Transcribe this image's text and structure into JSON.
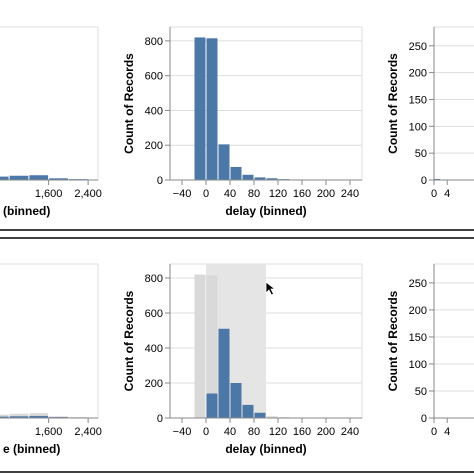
{
  "colors": {
    "bar": "#4c78a8",
    "bar_faded": "#d9d9d9",
    "selection": "#e5e5e5",
    "grid": "#dddddd",
    "axis": "#888888",
    "divider": "#000000"
  },
  "cursor": {
    "icon": "arrow-cursor-icon"
  },
  "chart_data": [
    {
      "type": "bar",
      "panel": "top-left",
      "xlabel": "(binned)",
      "x_tick_labels": [
        "1,600",
        "2,400"
      ],
      "x_ticks": [
        1600,
        2400
      ],
      "xlim": [
        -600,
        2600
      ],
      "ylim": [
        0,
        900
      ],
      "bins": [
        {
          "x0": 400,
          "x1": 800,
          "value": 20
        },
        {
          "x0": 800,
          "x1": 1200,
          "value": 25
        },
        {
          "x0": 1200,
          "x1": 1600,
          "value": 28
        },
        {
          "x0": 1600,
          "x1": 2000,
          "value": 10
        },
        {
          "x0": 2000,
          "x1": 2400,
          "value": 5
        }
      ]
    },
    {
      "type": "bar",
      "panel": "top-middle",
      "xlabel": "delay (binned)",
      "ylabel": "Count of Records",
      "x_tick_labels": [
        "−40",
        "0",
        "40",
        "80",
        "120",
        "160",
        "200",
        "240"
      ],
      "x_ticks": [
        -40,
        0,
        40,
        80,
        120,
        160,
        200,
        240
      ],
      "y_tick_labels": [
        "0",
        "200",
        "400",
        "600",
        "800"
      ],
      "y_ticks": [
        0,
        200,
        400,
        600,
        800
      ],
      "xlim": [
        -60,
        260
      ],
      "ylim": [
        0,
        880
      ],
      "bins": [
        {
          "x0": -20,
          "x1": 0,
          "value": 820
        },
        {
          "x0": 0,
          "x1": 20,
          "value": 815
        },
        {
          "x0": 20,
          "x1": 40,
          "value": 205
        },
        {
          "x0": 40,
          "x1": 60,
          "value": 75
        },
        {
          "x0": 60,
          "x1": 80,
          "value": 30
        },
        {
          "x0": 80,
          "x1": 100,
          "value": 15
        },
        {
          "x0": 100,
          "x1": 120,
          "value": 10
        },
        {
          "x0": 120,
          "x1": 140,
          "value": 5
        },
        {
          "x0": 140,
          "x1": 160,
          "value": 3
        },
        {
          "x0": 160,
          "x1": 180,
          "value": 2
        },
        {
          "x0": 180,
          "x1": 200,
          "value": 2
        },
        {
          "x0": 200,
          "x1": 220,
          "value": 1
        },
        {
          "x0": 220,
          "x1": 240,
          "value": 1
        }
      ]
    },
    {
      "type": "bar",
      "panel": "top-right",
      "ylabel": "Count of Records",
      "x_tick_labels": [
        "0",
        "4"
      ],
      "x_ticks": [
        0,
        4
      ],
      "y_tick_labels": [
        "0",
        "50",
        "100",
        "150",
        "200",
        "250"
      ],
      "y_ticks": [
        0,
        50,
        100,
        150,
        200,
        250
      ],
      "xlim": [
        0,
        20
      ],
      "ylim": [
        0,
        285
      ],
      "bins": [
        {
          "x0": 0,
          "x1": 2,
          "value": 2
        },
        {
          "x0": 2,
          "x1": 4,
          "value": 1
        }
      ]
    },
    {
      "type": "bar",
      "panel": "bottom-left",
      "xlabel": "e (binned)",
      "x_tick_labels": [
        "1,600",
        "2,400"
      ],
      "x_ticks": [
        1600,
        2400
      ],
      "xlim": [
        -600,
        2600
      ],
      "ylim": [
        0,
        900
      ],
      "bins": [
        {
          "x0": 400,
          "x1": 800,
          "value": 20,
          "filtered": 8
        },
        {
          "x0": 800,
          "x1": 1200,
          "value": 25,
          "filtered": 10
        },
        {
          "x0": 1200,
          "x1": 1600,
          "value": 28,
          "filtered": 12
        },
        {
          "x0": 1600,
          "x1": 2000,
          "value": 10,
          "filtered": 5
        },
        {
          "x0": 2000,
          "x1": 2400,
          "value": 5,
          "filtered": 2
        }
      ]
    },
    {
      "type": "bar",
      "panel": "bottom-middle",
      "xlabel": "delay (binned)",
      "ylabel": "Count of Records",
      "x_tick_labels": [
        "−40",
        "0",
        "40",
        "80",
        "120",
        "160",
        "200",
        "240"
      ],
      "x_ticks": [
        -40,
        0,
        40,
        80,
        120,
        160,
        200,
        240
      ],
      "y_tick_labels": [
        "0",
        "200",
        "400",
        "600",
        "800"
      ],
      "y_ticks": [
        0,
        200,
        400,
        600,
        800
      ],
      "xlim": [
        -60,
        260
      ],
      "ylim": [
        0,
        880
      ],
      "selection": [
        0,
        100
      ],
      "bins": [
        {
          "x0": -20,
          "x1": 0,
          "value": 820,
          "filtered": 0
        },
        {
          "x0": 0,
          "x1": 20,
          "value": 815,
          "filtered": 140
        },
        {
          "x0": 20,
          "x1": 40,
          "value": 205,
          "filtered": 510
        },
        {
          "x0": 40,
          "x1": 60,
          "value": 75,
          "filtered": 200
        },
        {
          "x0": 60,
          "x1": 80,
          "value": 30,
          "filtered": 75
        },
        {
          "x0": 80,
          "x1": 100,
          "value": 15,
          "filtered": 30
        },
        {
          "x0": 100,
          "x1": 120,
          "value": 10,
          "filtered": 0
        },
        {
          "x0": 120,
          "x1": 140,
          "value": 5,
          "filtered": 0
        },
        {
          "x0": 140,
          "x1": 160,
          "value": 3,
          "filtered": 0
        },
        {
          "x0": 160,
          "x1": 180,
          "value": 2,
          "filtered": 0
        },
        {
          "x0": 180,
          "x1": 200,
          "value": 2,
          "filtered": 0
        },
        {
          "x0": 200,
          "x1": 220,
          "value": 1,
          "filtered": 0
        },
        {
          "x0": 220,
          "x1": 240,
          "value": 1,
          "filtered": 0
        }
      ]
    },
    {
      "type": "bar",
      "panel": "bottom-right",
      "ylabel": "Count of Records",
      "x_tick_labels": [
        "0",
        "4"
      ],
      "x_ticks": [
        0,
        4
      ],
      "y_tick_labels": [
        "0",
        "50",
        "100",
        "150",
        "200",
        "250"
      ],
      "y_ticks": [
        0,
        50,
        100,
        150,
        200,
        250
      ],
      "xlim": [
        0,
        20
      ],
      "ylim": [
        0,
        285
      ],
      "bins": [
        {
          "x0": 0,
          "x1": 2,
          "value": 1,
          "filtered": 0
        },
        {
          "x0": 2,
          "x1": 4,
          "value": 1,
          "filtered": 0
        }
      ]
    }
  ]
}
